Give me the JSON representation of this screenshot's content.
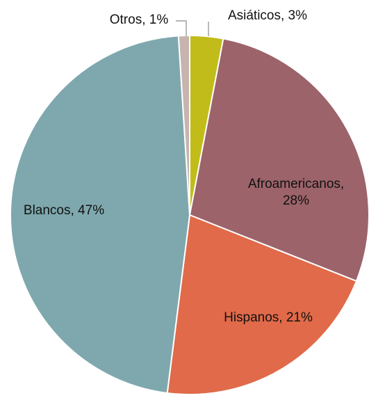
{
  "chart_data": {
    "type": "pie",
    "title": "",
    "categories": [
      "Asiáticos",
      "Afroamericanos",
      "Hispanos",
      "Blancos",
      "Otros"
    ],
    "values": [
      3,
      28,
      21,
      47,
      1
    ],
    "unit": "%",
    "colors": [
      "#c2bc1a",
      "#9c636a",
      "#e06a49",
      "#7ea8ae",
      "#c8b4ae"
    ],
    "labels": [
      {
        "lines": [
          "Asiáticos, 3%"
        ]
      },
      {
        "lines": [
          "Afroamericanos,",
          "28%"
        ]
      },
      {
        "lines": [
          "Hispanos, 21%"
        ]
      },
      {
        "lines": [
          "Blancos, 47%"
        ]
      },
      {
        "lines": [
          "Otros, 1%"
        ]
      }
    ],
    "start_angle": "12 o'clock",
    "direction": "clockwise",
    "legend": "none"
  }
}
